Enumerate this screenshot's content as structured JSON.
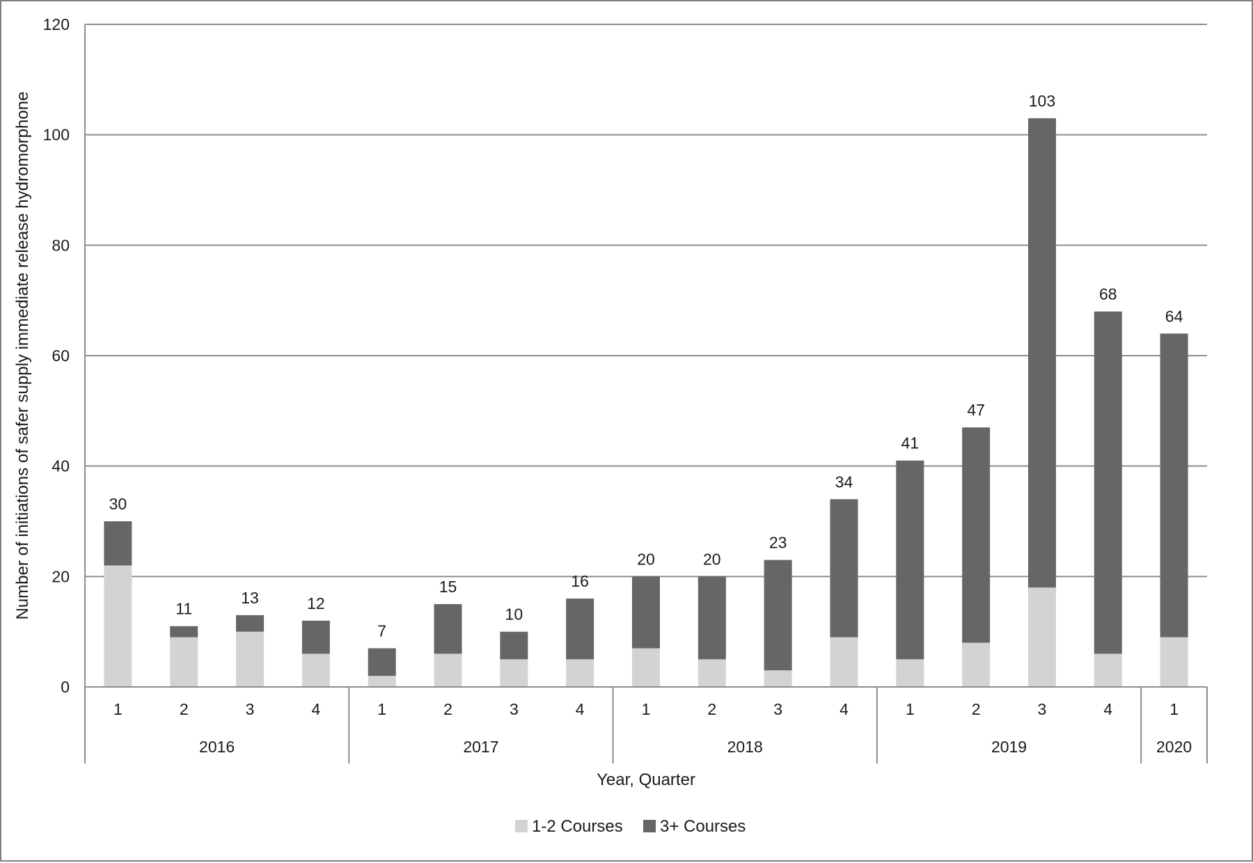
{
  "chart_data": {
    "type": "bar",
    "stacked": true,
    "title": "",
    "xlabel": "Year, Quarter",
    "ylabel": "Number of initiations of safer supply immediate release hydromorphone",
    "ylim": [
      0,
      120
    ],
    "yticks": [
      "0",
      "20",
      "40",
      "60",
      "80",
      "100",
      "120"
    ],
    "grid": true,
    "legend_position": "bottom",
    "categories": [
      "1",
      "2",
      "3",
      "4",
      "1",
      "2",
      "3",
      "4",
      "1",
      "2",
      "3",
      "4",
      "1",
      "2",
      "3",
      "4",
      "1"
    ],
    "groups": [
      {
        "label": "2016",
        "count": 4
      },
      {
        "label": "2017",
        "count": 4
      },
      {
        "label": "2018",
        "count": 4
      },
      {
        "label": "2019",
        "count": 4
      },
      {
        "label": "2020",
        "count": 1
      }
    ],
    "series": [
      {
        "name": "1-2 Courses",
        "color": "#d3d3d3",
        "values": [
          22,
          9,
          10,
          6,
          2,
          6,
          5,
          5,
          7,
          5,
          3,
          9,
          5,
          8,
          18,
          6,
          9
        ]
      },
      {
        "name": "3+ Courses",
        "color": "#666666",
        "values": [
          8,
          2,
          3,
          6,
          5,
          9,
          5,
          11,
          13,
          15,
          20,
          25,
          36,
          39,
          85,
          62,
          55
        ]
      }
    ],
    "totals": [
      "30",
      "11",
      "13",
      "12",
      "7",
      "15",
      "10",
      "16",
      "20",
      "20",
      "23",
      "34",
      "41",
      "47",
      "103",
      "68",
      "64"
    ]
  }
}
